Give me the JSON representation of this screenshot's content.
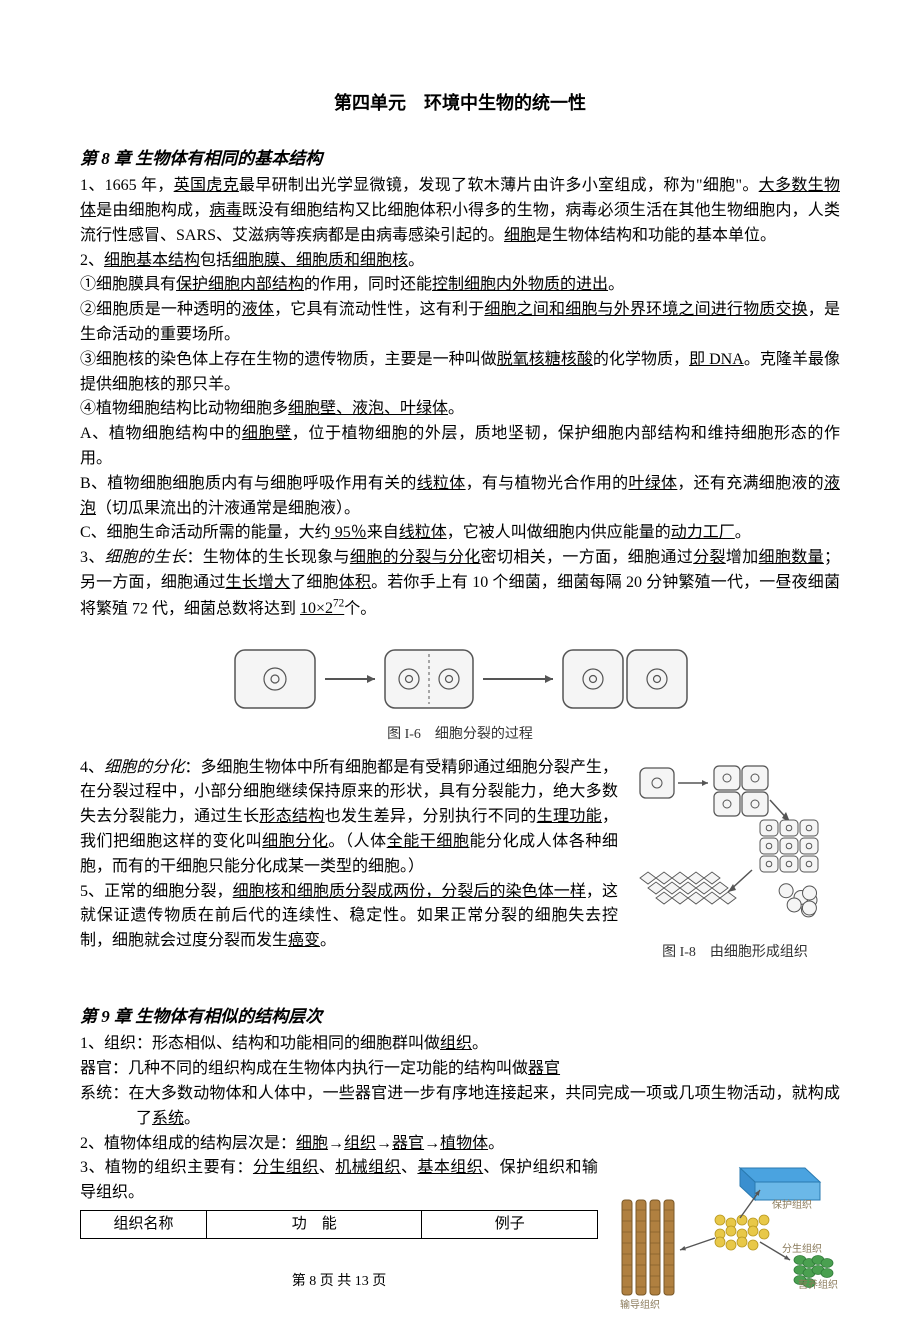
{
  "doc": {
    "title": "第四单元　环境中生物的统一性",
    "footer": "第 8 页 共 13 页"
  },
  "ch8": {
    "title": "第 8 章 生物体有相同的基本结构",
    "p1": {
      "a": "1、1665 年，",
      "u1": "英国虎克",
      "b": "最早研制出光学显微镜，发现了软木薄片由许多小室组成，称为\"细胞\"。",
      "u2": "大多数生物体",
      "c": "是由细胞构成，",
      "u3": "病毒",
      "d": "既没有细胞结构又比细胞体积小得多的生物，病毒必须生活在其他生物细胞内，人类流行性感冒、SARS、艾滋病等疾病都是由病毒感染引起的。",
      "u4": "细胞",
      "e": "是生物体结构和功能的基本单位。"
    },
    "p2": {
      "a": "2、",
      "u1": "细胞基本结构",
      "b": "包括",
      "u2": "细胞膜、细胞质和细胞核",
      "c": "。"
    },
    "p2_1": {
      "a": "①细胞膜具有",
      "u1": "保护细胞内部结构",
      "b": "的作用，同时还能",
      "u2": "控制细胞内外物质的进出",
      "c": "。"
    },
    "p2_2": {
      "a": "②细胞质是一种透明的",
      "u1": "液体",
      "b": "，它具有流动性性，这有利于",
      "u2": "细胞之间和细胞与外界环境之间进行物质交换",
      "c": "，是生命活动的重要场所。"
    },
    "p2_3": {
      "a": "③细胞核的染色体上存在生物的遗传物质，主要是一种叫做",
      "u1": "脱氧核糖核酸",
      "b": "的化学物质，",
      "u2": "即 DNA",
      "c": "。克隆羊最像提供细胞核的那只羊。"
    },
    "p2_4": {
      "a": "④植物细胞结构比动物细胞多",
      "u1": "细胞壁、液泡、叶绿体",
      "b": "。"
    },
    "pA": {
      "a": "A、植物细胞结构中的",
      "u1": "细胞壁",
      "b": "，位于植物细胞的外层，质地坚韧，保护细胞内部结构和维持细胞形态的作用。"
    },
    "pB": {
      "a": "B、植物细胞细胞质内有与细胞呼吸作用有关的",
      "u1": "线粒体",
      "b": "，有与植物光合作用的",
      "u2": "叶绿体",
      "c": "，还有充满细胞液的",
      "u3": "液泡",
      "d": "（切瓜果流出的汁液通常是细胞液）。"
    },
    "pC": {
      "a": "C、细胞生命活动所需的能量，大约",
      "u1": " 95％",
      "b": "来自",
      "u2": "线粒体",
      "c": "，它被人叫做细胞内供应能量的",
      "u3": "动力工厂",
      "d": "。"
    },
    "p3": {
      "a": "3、",
      "i1": "细胞的生长",
      "b": "：生物体的生长现象与",
      "u1": "细胞的分裂与分化",
      "c": "密切相关，一方面，细胞通过",
      "u2": "分裂",
      "d": "增加",
      "u3": "细胞数量",
      "e": "；另一方面，细胞通过",
      "u4": "生长增大",
      "f": "了细胞",
      "u5": "体积",
      "g": "。若你手上有 10 个细菌，细菌每隔 20 分钟繁殖一代，一昼夜细菌将繁殖 72 代，细菌总数将达到 ",
      "u6_pre": "10×2",
      "u6_sup": "72",
      "h": "个。"
    },
    "fig6": {
      "caption": "图 I-6　细胞分裂的过程"
    },
    "fig8": {
      "caption": "图 I-8　由细胞形成组织"
    },
    "p4": {
      "a": "4、",
      "i1": "细胞的分化",
      "b": "：多细胞生物体中所有细胞都是有受精卵通过细胞分裂产生，在分裂过程中，小部分细胞继续保持原来的形状，具有分裂能力，绝大多数失去分裂能力，通过生长",
      "u1": "形态结构",
      "c": "也发生差异，分别执行不同的",
      "u2": "生理功能",
      "d": "，我们把细胞这样的变化叫",
      "u3": "细胞分化",
      "e": "。（人体",
      "u4": "全能干细胞",
      "f": "能分化成人体各种细胞，而有的干细胞只能分化成某一类型的细胞。）"
    },
    "p5": {
      "a": "5、正常的细胞分裂，",
      "u1": "细胞核和细胞质分裂成两份，分裂后的染色体一样",
      "b": "，这就保证遗传物质在前后代的连续性、稳定性。如果正常分裂的细胞失去控制，细胞就会过度分裂而发生",
      "u2": "癌变",
      "c": "。"
    }
  },
  "ch9": {
    "title": "第 9 章 生物体有相似的结构层次",
    "p1": {
      "a": "1、组织：形态相似、结构和功能相同的细胞群叫做",
      "u1": "组织",
      "b": "。"
    },
    "p1b": {
      "label": "器官：",
      "text": "几种不同的组织构成在生物体内执行一定功能的结构叫做",
      "u1": "器官"
    },
    "p1c": {
      "label": "系统：",
      "a": "在大多数动物体和人体中，一些器官进一步有序地连接起来，共同完成一项或几项生物活动，就构成了",
      "u1": "系统",
      "b": "。"
    },
    "p2": {
      "a": "2、植物体组成的结构层次是：",
      "u1": "细胞",
      "arrow": "→",
      "u2": "组织",
      "u3": "器官",
      "u4": "植物体",
      "b": "。"
    },
    "p3": {
      "a": "3、植物的组织主要有：",
      "u1": "分生组织",
      "sep": "、",
      "u2": "机械组织",
      "u3": "基本组织",
      "b": "、保护组织和输导组织。"
    },
    "table": {
      "h1": "组织名称",
      "h2": "功　能",
      "h3": "例子"
    }
  },
  "svg": {
    "cell_stroke": "#555555",
    "cell_fill": "#f5f5f5",
    "arrow_color": "#555555",
    "tissue_blue": "#4aa3e0",
    "tissue_yellow": "#e8c848",
    "tissue_green": "#4aa050",
    "tissue_brown": "#b08040",
    "label_color": "#8a7a5a"
  }
}
